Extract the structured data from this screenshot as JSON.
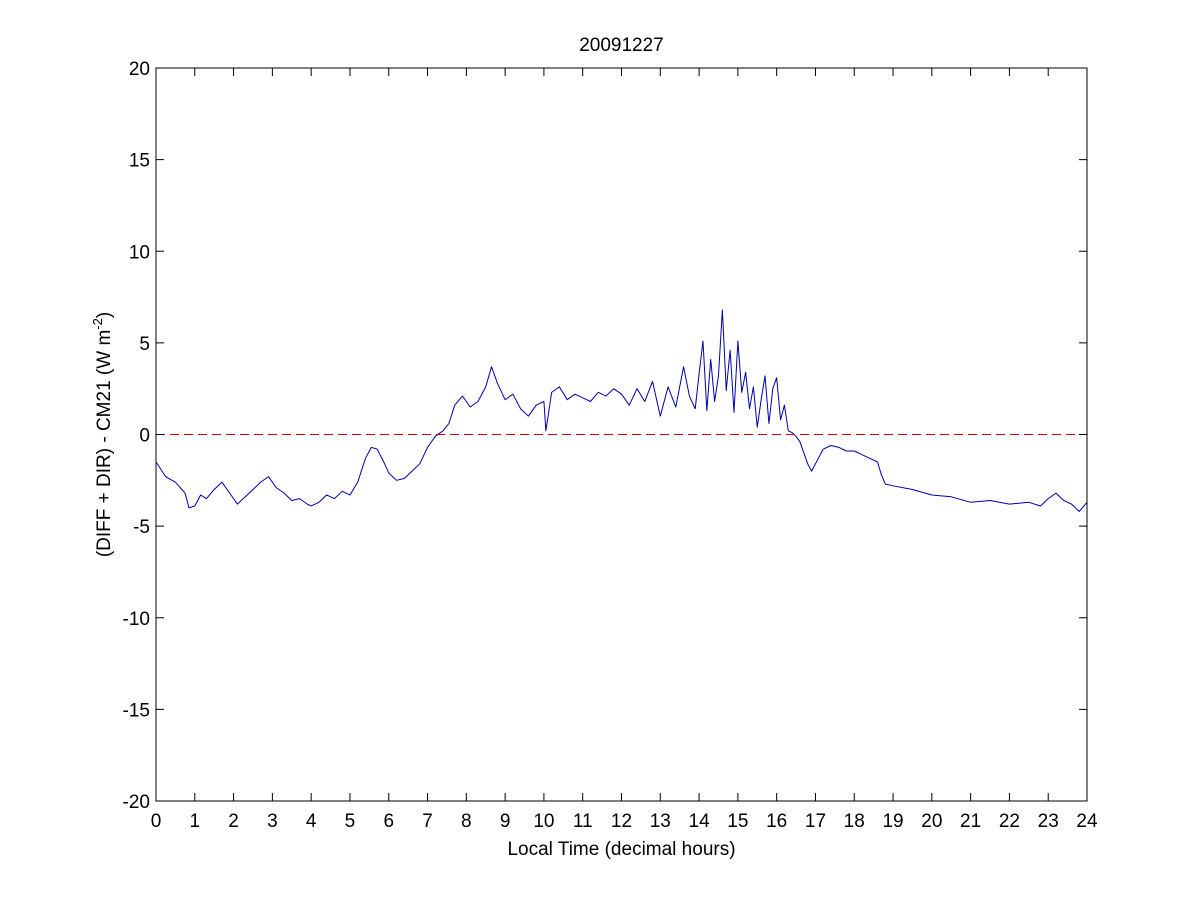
{
  "chart_data": {
    "type": "line",
    "title": "20091227",
    "xlabel": "Local Time (decimal hours)",
    "ylabel": {
      "main": "(DIFF + DIR) - CM21 (W m",
      "superscript": "-2",
      "closing": ")"
    },
    "xlim": [
      0,
      24
    ],
    "ylim": [
      -20,
      20
    ],
    "xticks": [
      0,
      1,
      2,
      3,
      4,
      5,
      6,
      7,
      8,
      9,
      10,
      11,
      12,
      13,
      14,
      15,
      16,
      17,
      18,
      19,
      20,
      21,
      22,
      23,
      24
    ],
    "yticks": [
      20,
      15,
      10,
      5,
      0,
      -5,
      -10,
      -15,
      -20
    ],
    "grid": false,
    "legend": "none",
    "series": [
      {
        "color": "#0000aa",
        "style": "solid",
        "x": [
          0,
          0.25,
          0.5,
          0.75,
          0.85,
          1.0,
          1.15,
          1.3,
          1.5,
          1.7,
          1.9,
          2.1,
          2.3,
          2.5,
          2.7,
          2.9,
          3.1,
          3.3,
          3.5,
          3.7,
          3.9,
          4.0,
          4.2,
          4.4,
          4.6,
          4.8,
          5.0,
          5.2,
          5.4,
          5.55,
          5.7,
          5.85,
          6.0,
          6.2,
          6.4,
          6.6,
          6.8,
          7.0,
          7.2,
          7.4,
          7.55,
          7.7,
          7.9,
          8.1,
          8.3,
          8.5,
          8.65,
          8.8,
          9.0,
          9.2,
          9.4,
          9.6,
          9.8,
          10.0,
          10.05,
          10.2,
          10.4,
          10.6,
          10.8,
          11.0,
          11.2,
          11.4,
          11.6,
          11.8,
          12.0,
          12.2,
          12.4,
          12.6,
          12.8,
          13.0,
          13.2,
          13.4,
          13.6,
          13.75,
          13.9,
          14.0,
          14.1,
          14.2,
          14.3,
          14.4,
          14.5,
          14.6,
          14.7,
          14.8,
          14.9,
          15.0,
          15.1,
          15.2,
          15.3,
          15.4,
          15.5,
          15.6,
          15.7,
          15.8,
          15.9,
          16.0,
          16.1,
          16.2,
          16.3,
          16.4,
          16.5,
          16.6,
          16.7,
          16.8,
          16.9,
          17.0,
          17.2,
          17.4,
          17.6,
          17.8,
          18.0,
          18.2,
          18.4,
          18.6,
          18.7,
          18.8,
          19.0,
          19.5,
          20.0,
          20.5,
          21.0,
          21.5,
          22.0,
          22.5,
          22.8,
          23.0,
          23.2,
          23.4,
          23.6,
          23.8,
          24.0
        ],
        "y": [
          -1.5,
          -2.3,
          -2.6,
          -3.2,
          -4.0,
          -3.9,
          -3.3,
          -3.5,
          -3.0,
          -2.6,
          -3.2,
          -3.8,
          -3.4,
          -3.0,
          -2.6,
          -2.3,
          -2.9,
          -3.2,
          -3.6,
          -3.5,
          -3.8,
          -3.9,
          -3.7,
          -3.3,
          -3.5,
          -3.1,
          -3.3,
          -2.6,
          -1.3,
          -0.7,
          -0.8,
          -1.4,
          -2.1,
          -2.5,
          -2.4,
          -2.0,
          -1.6,
          -0.7,
          -0.1,
          0.2,
          0.6,
          1.6,
          2.1,
          1.5,
          1.8,
          2.6,
          3.7,
          2.8,
          1.9,
          2.2,
          1.4,
          1.0,
          1.6,
          1.8,
          0.2,
          2.3,
          2.6,
          1.9,
          2.2,
          2.0,
          1.8,
          2.3,
          2.1,
          2.5,
          2.2,
          1.6,
          2.5,
          1.8,
          2.9,
          1.0,
          2.6,
          1.5,
          3.7,
          2.1,
          1.4,
          3.3,
          5.1,
          1.3,
          4.1,
          1.8,
          3.2,
          6.8,
          2.4,
          4.6,
          1.2,
          5.1,
          2.3,
          3.4,
          1.4,
          2.6,
          0.4,
          1.9,
          3.2,
          0.6,
          2.5,
          3.1,
          0.8,
          1.6,
          0.2,
          0.1,
          -0.1,
          -0.4,
          -1.0,
          -1.6,
          -2.0,
          -1.6,
          -0.8,
          -0.6,
          -0.7,
          -0.9,
          -0.9,
          -1.1,
          -1.3,
          -1.5,
          -2.2,
          -2.7,
          -2.8,
          -3.0,
          -3.3,
          -3.4,
          -3.7,
          -3.6,
          -3.8,
          -3.7,
          -3.9,
          -3.5,
          -3.2,
          -3.6,
          -3.8,
          -4.2,
          -3.7
        ]
      },
      {
        "color": "#cc0000",
        "style": "dashed",
        "x": [
          0,
          24
        ],
        "y": [
          0,
          0
        ]
      }
    ]
  }
}
